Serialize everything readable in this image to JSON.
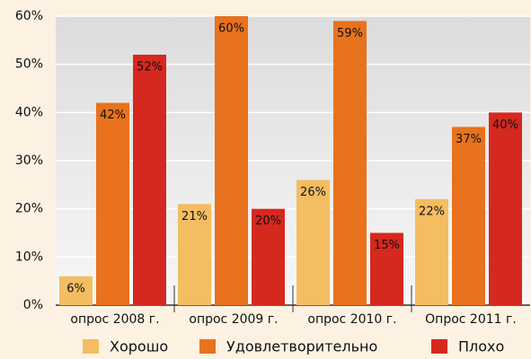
{
  "chart_data": {
    "type": "bar",
    "categories": [
      "опрос 2008 г.",
      "опрос 2009 г.",
      "опрос 2010 г.",
      "Опрос 2011 г."
    ],
    "series": [
      {
        "name": "Хорошо",
        "color": "#f4bd62",
        "values": [
          6,
          21,
          26,
          22
        ],
        "value_labels": [
          "6%",
          "21%",
          "26%",
          "22%"
        ]
      },
      {
        "name": "Удовлетворительно",
        "color": "#e8721d",
        "values": [
          42,
          60,
          59,
          37
        ],
        "value_labels": [
          "42%",
          "60%",
          "59%",
          "37%"
        ]
      },
      {
        "name": "Плохо",
        "color": "#d5281f",
        "values": [
          52,
          20,
          15,
          40
        ],
        "value_labels": [
          "52%",
          "20%",
          "15%",
          "40%"
        ]
      }
    ],
    "ylim": [
      0,
      60
    ],
    "yticks": [
      {
        "value": 0,
        "label": "0%"
      },
      {
        "value": 10,
        "label": "10%"
      },
      {
        "value": 20,
        "label": "20%"
      },
      {
        "value": 30,
        "label": "30%"
      },
      {
        "value": 40,
        "label": "40%"
      },
      {
        "value": 50,
        "label": "50%"
      },
      {
        "value": 60,
        "label": "60%"
      }
    ],
    "grid": true,
    "legend": "bottom"
  }
}
